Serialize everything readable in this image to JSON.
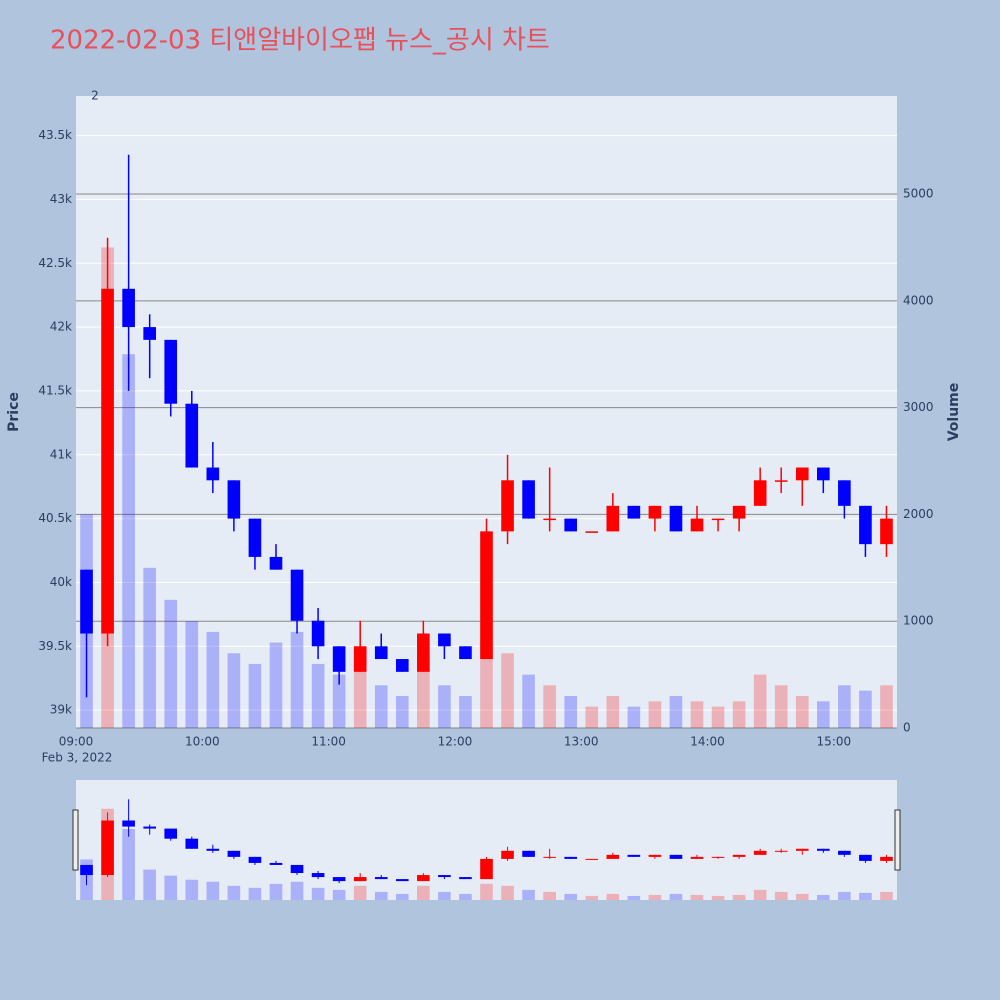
{
  "chart_data": {
    "type": "candlestick",
    "title": "2022-02-03 티앤알바이오팹 뉴스_공시 차트",
    "title_color": "#e8505b",
    "ylabel": "Price",
    "y2label": "Volume",
    "date_label": "Feb 3, 2022",
    "x": [
      "09:00",
      "09:10",
      "09:20",
      "09:30",
      "09:40",
      "09:50",
      "10:00",
      "10:10",
      "10:20",
      "10:30",
      "10:40",
      "10:50",
      "11:00",
      "11:10",
      "11:20",
      "11:30",
      "11:40",
      "11:50",
      "12:00",
      "12:10",
      "12:20",
      "12:30",
      "12:40",
      "12:50",
      "13:00",
      "13:10",
      "13:20",
      "13:30",
      "13:40",
      "13:50",
      "14:00",
      "14:10",
      "14:20",
      "14:30",
      "14:40",
      "14:50",
      "15:00",
      "15:10",
      "15:20"
    ],
    "open": [
      40100,
      39600,
      42300,
      42000,
      41900,
      41400,
      40900,
      40800,
      40500,
      40200,
      40100,
      39700,
      39500,
      39300,
      39500,
      39400,
      39300,
      39600,
      39500,
      39400,
      40400,
      40800,
      40500,
      40500,
      40400,
      40400,
      40600,
      40500,
      40600,
      40400,
      40500,
      40500,
      40600,
      40800,
      40800,
      40900,
      40800,
      40600,
      40300
    ],
    "high": [
      40100,
      42700,
      43350,
      42100,
      41900,
      41500,
      41100,
      40800,
      40500,
      40300,
      40100,
      39800,
      39500,
      39700,
      39600,
      39400,
      39700,
      39600,
      39500,
      40500,
      41000,
      40800,
      40900,
      40500,
      40400,
      40700,
      40600,
      40600,
      40600,
      40600,
      40500,
      40600,
      40900,
      40900,
      40900,
      40900,
      40800,
      40600,
      40600
    ],
    "low": [
      39100,
      39500,
      41500,
      41600,
      41300,
      40900,
      40700,
      40400,
      40100,
      40100,
      39600,
      39400,
      39200,
      39300,
      39400,
      39300,
      39300,
      39400,
      39400,
      39400,
      40300,
      40500,
      40400,
      40400,
      40400,
      40400,
      40500,
      40400,
      40400,
      40400,
      40400,
      40400,
      40600,
      40700,
      40600,
      40700,
      40500,
      40200,
      40200
    ],
    "close": [
      39600,
      42300,
      42000,
      41900,
      41400,
      40900,
      40800,
      40500,
      40200,
      40100,
      39700,
      39500,
      39300,
      39500,
      39400,
      39300,
      39600,
      39500,
      39400,
      40400,
      40800,
      40500,
      40500,
      40400,
      40400,
      40600,
      40500,
      40600,
      40400,
      40500,
      40500,
      40600,
      40800,
      40800,
      40900,
      40800,
      40600,
      40300,
      40500
    ],
    "volume": [
      2000,
      4500,
      3500,
      1500,
      1200,
      1000,
      900,
      700,
      600,
      800,
      900,
      600,
      500,
      700,
      400,
      300,
      700,
      400,
      300,
      800,
      700,
      500,
      400,
      300,
      200,
      300,
      200,
      250,
      300,
      250,
      200,
      250,
      500,
      400,
      300,
      250,
      400,
      350,
      400
    ],
    "increasing_color": "#ff0000",
    "decreasing_color": "#0000ff",
    "xlim": [
      "09:00",
      "15:30"
    ],
    "xticks": [
      "09:00",
      "10:00",
      "11:00",
      "12:00",
      "13:00",
      "14:00",
      "15:00"
    ],
    "ylim": [
      38860,
      43810
    ],
    "yticks": [
      {
        "value": 39000,
        "label": "39k"
      },
      {
        "value": 39500,
        "label": "39.5k"
      },
      {
        "value": 40000,
        "label": "40k"
      },
      {
        "value": 40500,
        "label": "40.5k"
      },
      {
        "value": 41000,
        "label": "41k"
      },
      {
        "value": 41500,
        "label": "41.5k"
      },
      {
        "value": 42000,
        "label": "42k"
      },
      {
        "value": 42500,
        "label": "42.5k"
      },
      {
        "value": 43000,
        "label": "43k"
      },
      {
        "value": 43500,
        "label": "43.5k"
      }
    ],
    "y2lim": [
      0,
      5918
    ],
    "y2ticks": [
      0,
      1000,
      2000,
      3000,
      4000,
      5000
    ],
    "annotations": [
      {
        "x": "09:09",
        "text": "2"
      }
    ]
  }
}
